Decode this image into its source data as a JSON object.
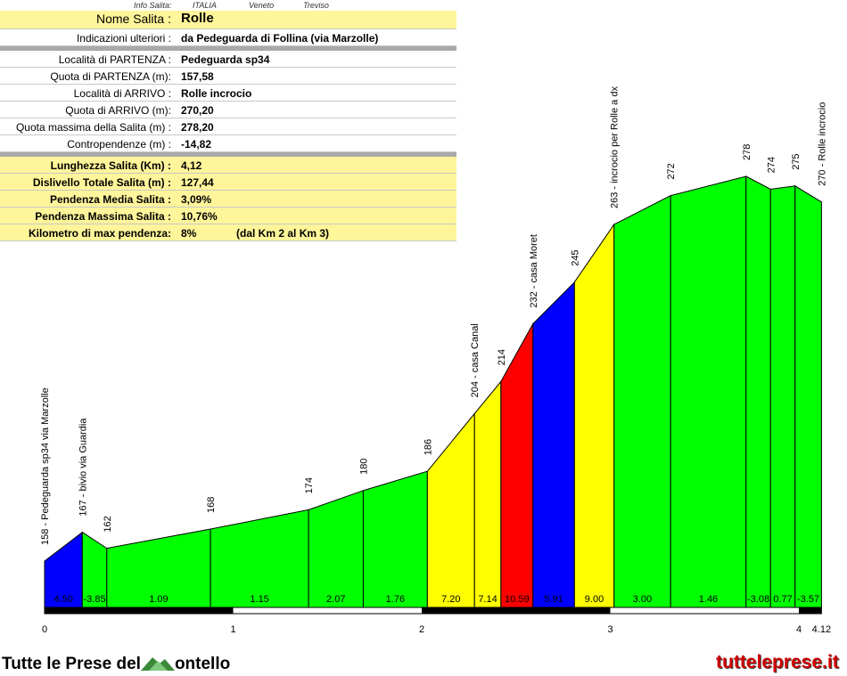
{
  "header": {
    "info_label": "Info Salita:",
    "country": "ITALIA",
    "region": "Veneto",
    "province": "Treviso"
  },
  "details": {
    "name_label": "Nome Salita :",
    "name": "Rolle",
    "notes_label": "Indicazioni ulteriori :",
    "notes": "da Pedeguarda di Follina (via Marzolle)",
    "start_place_label": "Località di PARTENZA :",
    "start_place": "Pedeguarda sp34",
    "start_alt_label": "Quota di PARTENZA (m):",
    "start_alt": "157,58",
    "end_place_label": "Località di ARRIVO :",
    "end_place": "Rolle incrocio",
    "end_alt_label": "Quota di ARRIVO (m):",
    "end_alt": "270,20",
    "max_alt_label": "Quota massima della Salita (m) :",
    "max_alt": "278,20",
    "counter_label": "Contropendenze (m) :",
    "counter": "-14,82"
  },
  "stats": {
    "length_label": "Lunghezza Salita (Km) :",
    "length": "4,12",
    "gain_label": "Dislivello Totale Salita (m) :",
    "gain": "127,44",
    "avg_label": "Pendenza Media Salita :",
    "avg": "3,09%",
    "max_label": "Pendenza Massima Salita :",
    "max": "10,76%",
    "maxkm_label": "Kilometro di max pendenza:",
    "maxkm": "8%",
    "maxkm_extra": "(dal Km 2 al Km 3)"
  },
  "footer": {
    "logo_pre": "Tutte le Prese del",
    "logo_post": "ontello",
    "site": "tutteleprese.it"
  },
  "chart_data": {
    "type": "area",
    "xlabel": "",
    "ylabel": "",
    "x_ticks": [
      "0",
      "1",
      "2",
      "3",
      "4",
      "4.12"
    ],
    "x_tick_values": [
      0,
      1,
      2,
      3,
      4,
      4.12
    ],
    "x_range": [
      0,
      4.12
    ],
    "points": [
      {
        "km": 0.0,
        "alt": 158,
        "label": "158 - Pedeguarda sp34 via Marzolle"
      },
      {
        "km": 0.2,
        "alt": 167,
        "label": "167 - bivio via Guardia"
      },
      {
        "km": 0.33,
        "alt": 162,
        "label": "162"
      },
      {
        "km": 0.88,
        "alt": 168,
        "label": "168"
      },
      {
        "km": 1.4,
        "alt": 174,
        "label": "174"
      },
      {
        "km": 1.69,
        "alt": 180,
        "label": "180"
      },
      {
        "km": 2.03,
        "alt": 186,
        "label": "186"
      },
      {
        "km": 2.28,
        "alt": 204,
        "label": "204 - casa Canal"
      },
      {
        "km": 2.42,
        "alt": 214,
        "label": "214"
      },
      {
        "km": 2.59,
        "alt": 232,
        "label": "232 - casa Moret"
      },
      {
        "km": 2.81,
        "alt": 245,
        "label": "245"
      },
      {
        "km": 3.02,
        "alt": 263,
        "label": "263 - incrocio per Rolle a dx"
      },
      {
        "km": 3.32,
        "alt": 272,
        "label": "272"
      },
      {
        "km": 3.72,
        "alt": 278,
        "label": "278"
      },
      {
        "km": 3.85,
        "alt": 274,
        "label": "274"
      },
      {
        "km": 3.98,
        "alt": 275,
        "label": "275"
      },
      {
        "km": 4.12,
        "alt": 270,
        "label": "270 - Rolle incrocio"
      }
    ],
    "segments": [
      {
        "grade": "4.50",
        "color": "#0000ff"
      },
      {
        "grade": "-3.85",
        "color": "#00ff00"
      },
      {
        "grade": "1.09",
        "color": "#00ff00"
      },
      {
        "grade": "1.15",
        "color": "#00ff00"
      },
      {
        "grade": "2.07",
        "color": "#00ff00"
      },
      {
        "grade": "1.76",
        "color": "#00ff00"
      },
      {
        "grade": "7.20",
        "color": "#ffff00"
      },
      {
        "grade": "7.14",
        "color": "#ffff00"
      },
      {
        "grade": "10.59",
        "color": "#ff0000"
      },
      {
        "grade": "5.91",
        "color": "#0000ff"
      },
      {
        "grade": "9.00",
        "color": "#ffff00"
      },
      {
        "grade": "3.00",
        "color": "#00ff00"
      },
      {
        "grade": "1.46",
        "color": "#00ff00"
      },
      {
        "grade": "-3.08",
        "color": "#00ff00"
      },
      {
        "grade": "0.77",
        "color": "#00ff00"
      },
      {
        "grade": "-3.57",
        "color": "#00ff00"
      }
    ]
  }
}
